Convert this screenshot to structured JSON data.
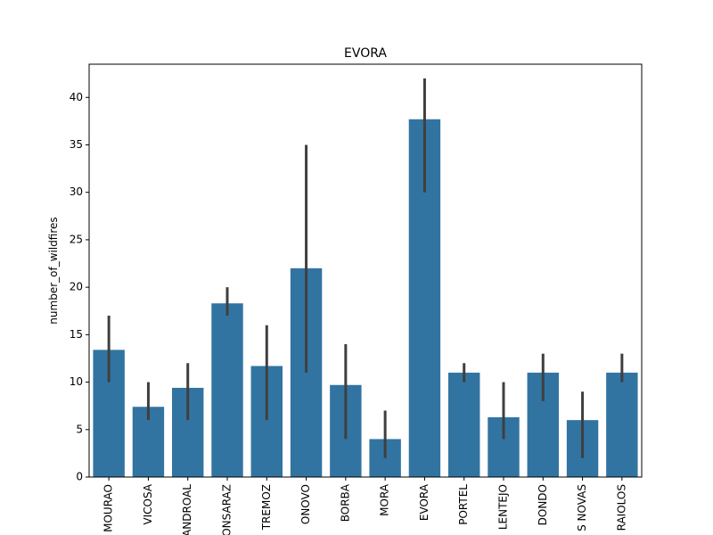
{
  "chart_data": {
    "type": "bar",
    "title": "EVORA",
    "xlabel": "",
    "ylabel": "number_of_wildfires",
    "ylim": [
      0,
      43.5
    ],
    "yticks": [
      0,
      5,
      10,
      15,
      20,
      25,
      30,
      35,
      40
    ],
    "categories": [
      "MOURAO",
      "VICOSA",
      "ANDROAL",
      "ONSARAZ",
      "TREMOZ",
      "ONOVO",
      "BORBA",
      "MORA",
      "EVORA",
      "PORTEL",
      "LENTEJO",
      "DONDO",
      "S NOVAS",
      "RAIOLOS"
    ],
    "values": [
      13.4,
      7.4,
      9.4,
      18.3,
      11.7,
      22.0,
      9.7,
      4.0,
      37.7,
      11.0,
      6.3,
      11.0,
      6.0,
      11.0
    ],
    "error_low": [
      10.0,
      6.0,
      6.0,
      17.0,
      6.0,
      11.0,
      4.0,
      2.0,
      30.0,
      10.0,
      4.0,
      8.0,
      2.0,
      10.0
    ],
    "error_high": [
      17.0,
      10.0,
      12.0,
      20.0,
      16.0,
      35.0,
      14.0,
      7.0,
      42.0,
      12.0,
      10.0,
      13.0,
      9.0,
      13.0
    ],
    "bar_color": "#3274a1",
    "error_color": "#3f3f3f",
    "grid": false,
    "legend": "none"
  }
}
